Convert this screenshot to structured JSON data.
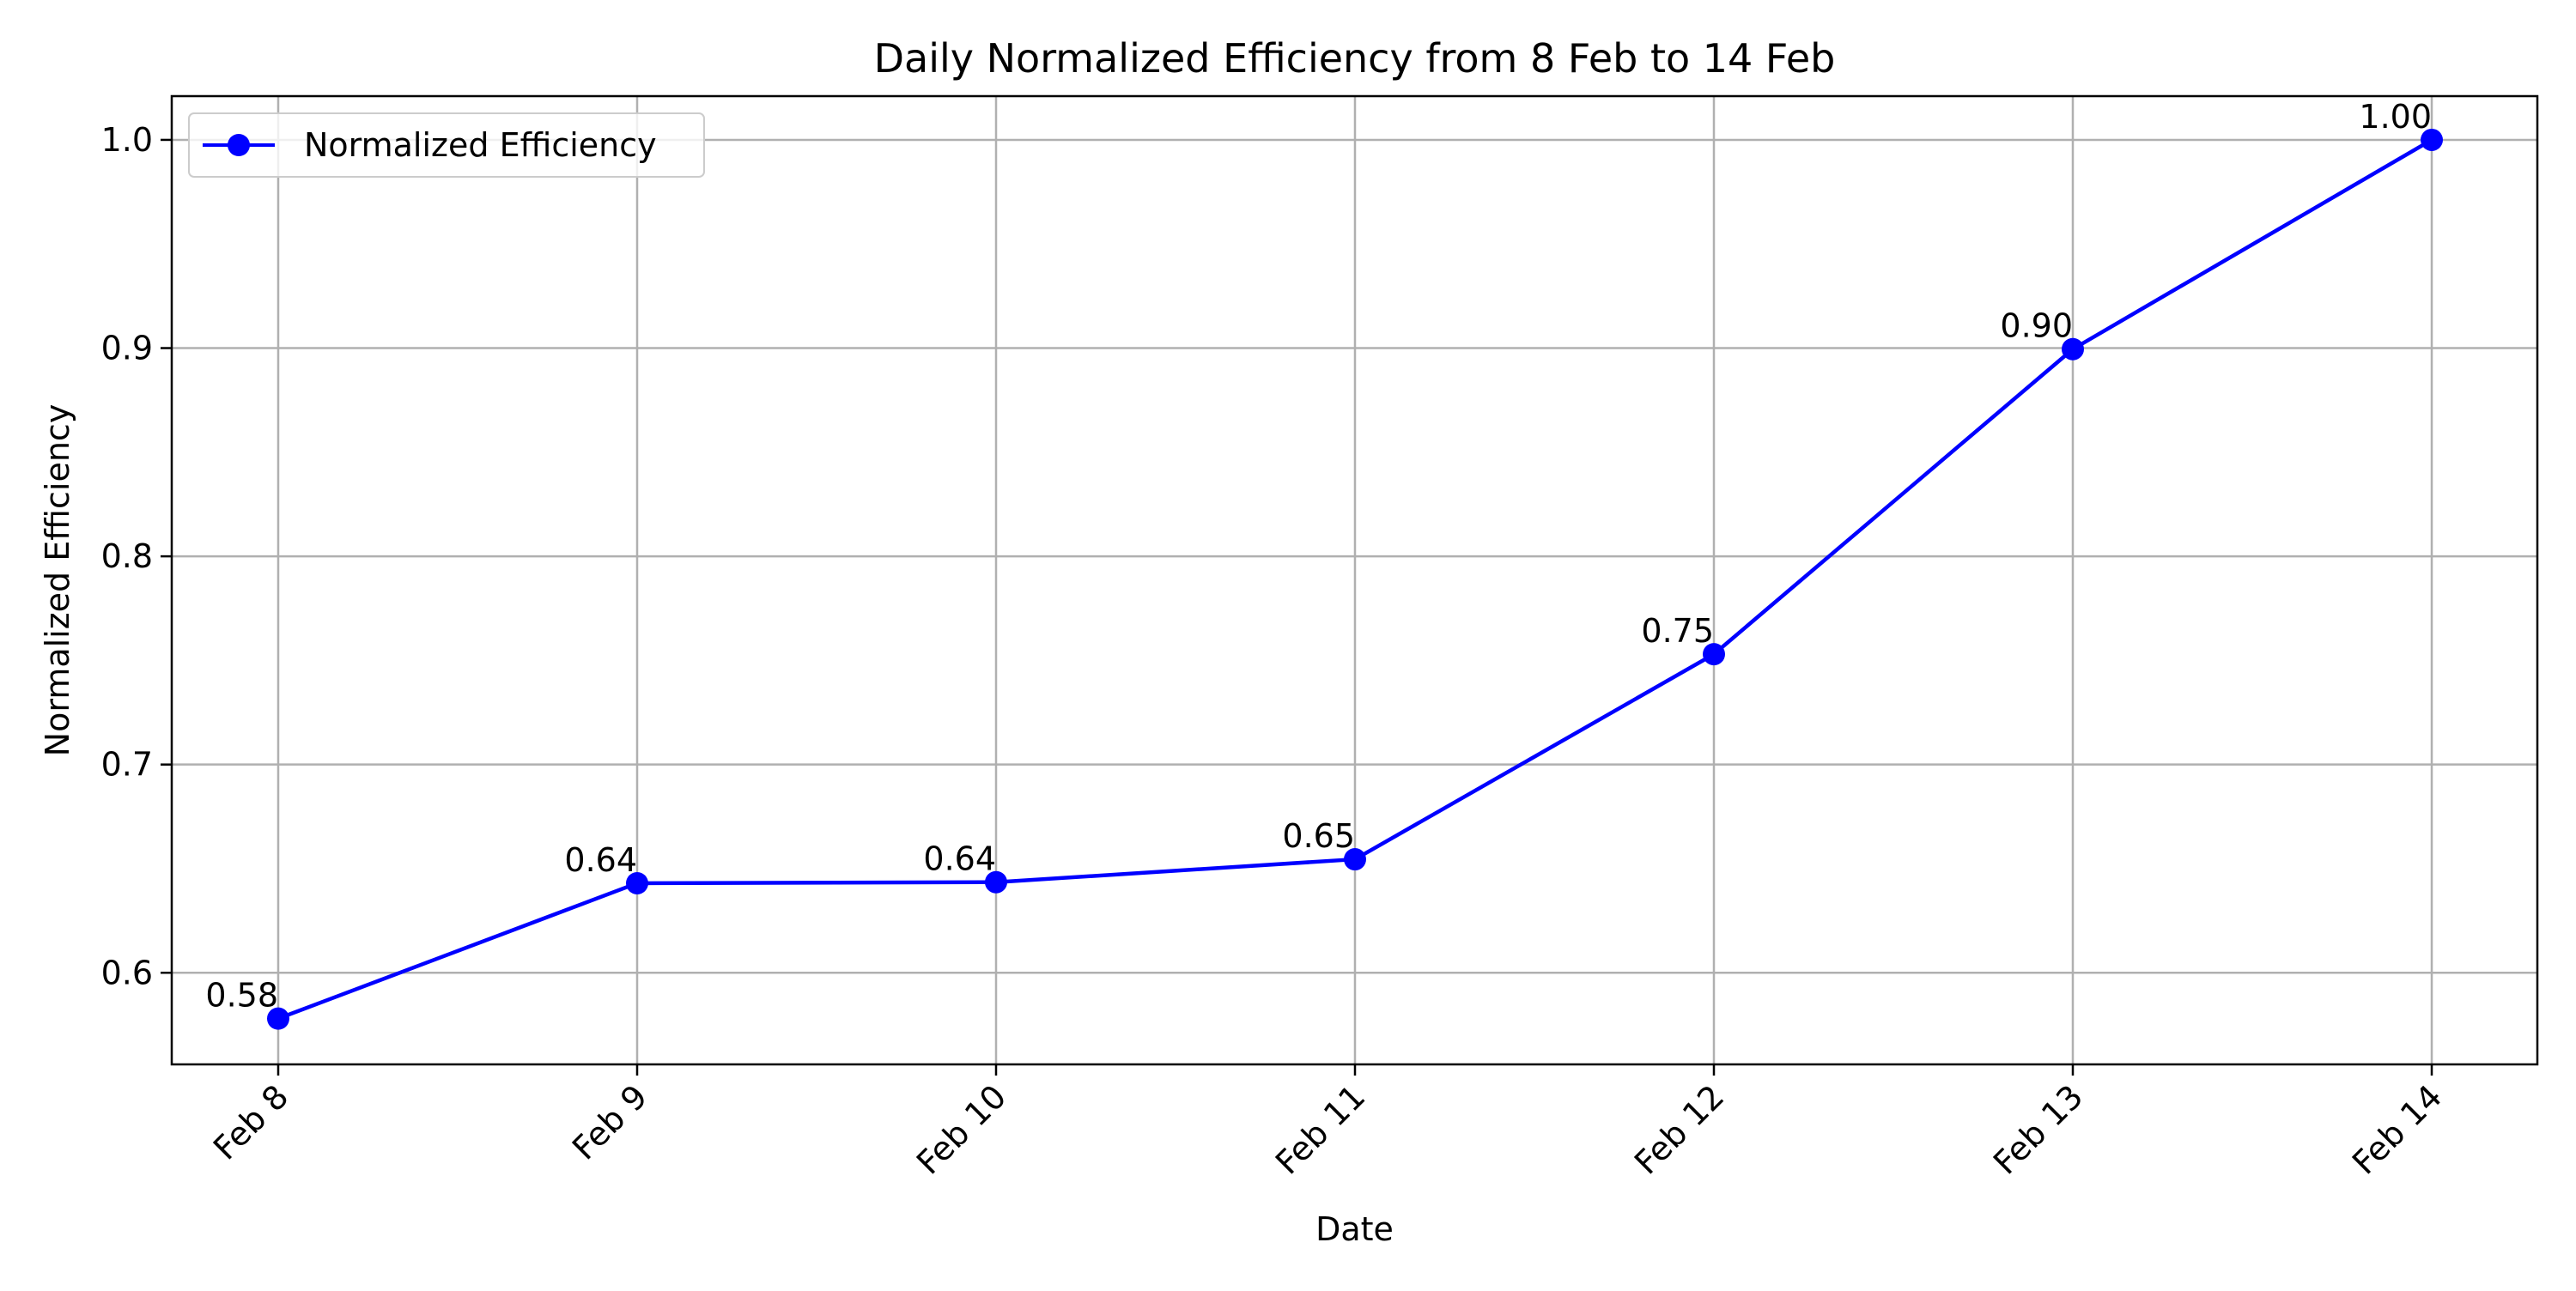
{
  "chart_data": {
    "type": "line",
    "title": "Daily Normalized Efficiency from 8 Feb to 14 Feb",
    "xlabel": "Date",
    "ylabel": "Normalized Efficiency",
    "categories": [
      "Feb 8",
      "Feb 9",
      "Feb 10",
      "Feb 11",
      "Feb 12",
      "Feb 13",
      "Feb 14"
    ],
    "series": [
      {
        "name": "Normalized Efficiency",
        "values": [
          0.578,
          0.643,
          0.6435,
          0.6545,
          0.753,
          0.8995,
          1.0
        ],
        "labels": [
          "0.58",
          "0.64",
          "0.64",
          "0.65",
          "0.75",
          "0.90",
          "1.00"
        ],
        "color": "#0000ff",
        "marker": "circle"
      }
    ],
    "ylim": [
      0.556,
      1.021
    ],
    "yticks": [
      0.6,
      0.7,
      0.8,
      0.9,
      1.0
    ],
    "ytick_labels": [
      "0.6",
      "0.7",
      "0.8",
      "0.9",
      "1.0"
    ],
    "grid": true,
    "grid_color": "#b0b0b0",
    "legend_position": "top-left",
    "x_tick_rotation": 45
  }
}
